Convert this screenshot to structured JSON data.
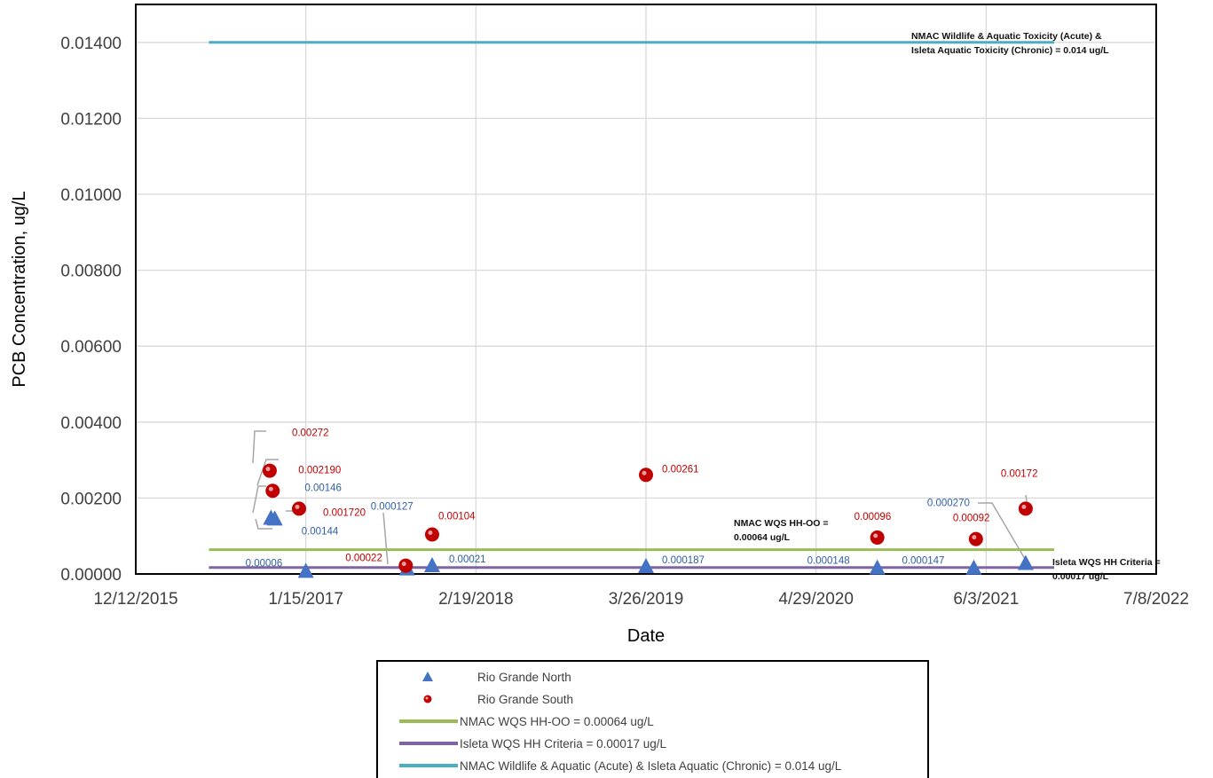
{
  "chart_data": {
    "type": "scatter",
    "title": "",
    "xlabel": "Date",
    "ylabel": "PCB Concentration, ug/L",
    "x_axis_type": "date",
    "xlim": [
      "2015-12-12",
      "2022-07-08"
    ],
    "x_ticks": [
      "12/12/2015",
      "1/15/2017",
      "2/19/2018",
      "3/26/2019",
      "4/29/2020",
      "6/3/2021",
      "7/8/2022"
    ],
    "ylim": [
      0,
      0.015
    ],
    "y_ticks": [
      "0.00000",
      "0.00200",
      "0.00400",
      "0.00600",
      "0.00800",
      "0.01000",
      "0.01200",
      "0.01400"
    ],
    "grid": true,
    "legend_position": "bottom",
    "series": [
      {
        "name": "Rio Grande North",
        "marker": "triangle",
        "color": "#4472c4",
        "label_color": "#2f5fa3",
        "points": [
          {
            "x": "2016-10-25",
            "y": 0.00146,
            "label": "0.00146"
          },
          {
            "x": "2016-11-03",
            "y": 0.00144,
            "label": "0.00144"
          },
          {
            "x": "2017-01-15",
            "y": 6e-05,
            "label": "0.00006"
          },
          {
            "x": "2017-09-10",
            "y": 0.000127,
            "label": "0.000127"
          },
          {
            "x": "2017-11-08",
            "y": 0.00021,
            "label": "0.00021"
          },
          {
            "x": "2019-03-26",
            "y": 0.000187,
            "label": "0.000187"
          },
          {
            "x": "2020-09-20",
            "y": 0.000148,
            "label": "0.000148"
          },
          {
            "x": "2021-05-05",
            "y": 0.000147,
            "label": "0.000147"
          },
          {
            "x": "2021-09-04",
            "y": 0.00027,
            "label": "0.000270"
          }
        ]
      },
      {
        "name": "Rio Grande South",
        "marker": "circle",
        "color": "#c00000",
        "label_color": "#c00000",
        "points": [
          {
            "x": "2016-10-22",
            "y": 0.00272,
            "label": "0.00272"
          },
          {
            "x": "2016-10-29",
            "y": 0.00219,
            "label": "0.002190"
          },
          {
            "x": "2016-12-30",
            "y": 0.00172,
            "label": "0.001720"
          },
          {
            "x": "2017-09-07",
            "y": 0.00022,
            "label": "0.00022"
          },
          {
            "x": "2017-11-08",
            "y": 0.00104,
            "label": "0.00104"
          },
          {
            "x": "2019-03-26",
            "y": 0.00261,
            "label": "0.00261"
          },
          {
            "x": "2020-09-20",
            "y": 0.00096,
            "label": "0.00096"
          },
          {
            "x": "2021-05-10",
            "y": 0.00092,
            "label": "0.00092"
          },
          {
            "x": "2021-09-04",
            "y": 0.00172,
            "label": "0.00172"
          }
        ]
      },
      {
        "name": "NMAC WQS HH-OO = 0.00064 ug/L",
        "type": "reference",
        "y": 0.00064,
        "x_range": [
          "2016-06-01",
          "2021-11-10"
        ],
        "color": "#9bbb59",
        "note": [
          "NMAC WQS HH-OO =",
          "0.00064 ug/L"
        ]
      },
      {
        "name": "Isleta WQS HH Criteria = 0.00017 ug/L",
        "type": "reference",
        "y": 0.00017,
        "x_range": [
          "2016-06-01",
          "2021-11-10"
        ],
        "color": "#8064a2",
        "note": [
          "Isleta WQS HH Criteria =",
          "0.00017 ug/L"
        ]
      },
      {
        "name": "NMAC Wildlife & Aquatic (Acute) & Isleta Aquatic (Chronic) = 0.014 ug/L",
        "type": "reference",
        "y": 0.014,
        "x_range": [
          "2016-06-01",
          "2021-11-10"
        ],
        "color": "#4bacc6",
        "note": [
          "NMAC Wildlife & Aquatic Toxicity (Acute) &",
          "Isleta Aquatic Toxicity (Chronic) = 0.014 ug/L"
        ]
      }
    ]
  }
}
